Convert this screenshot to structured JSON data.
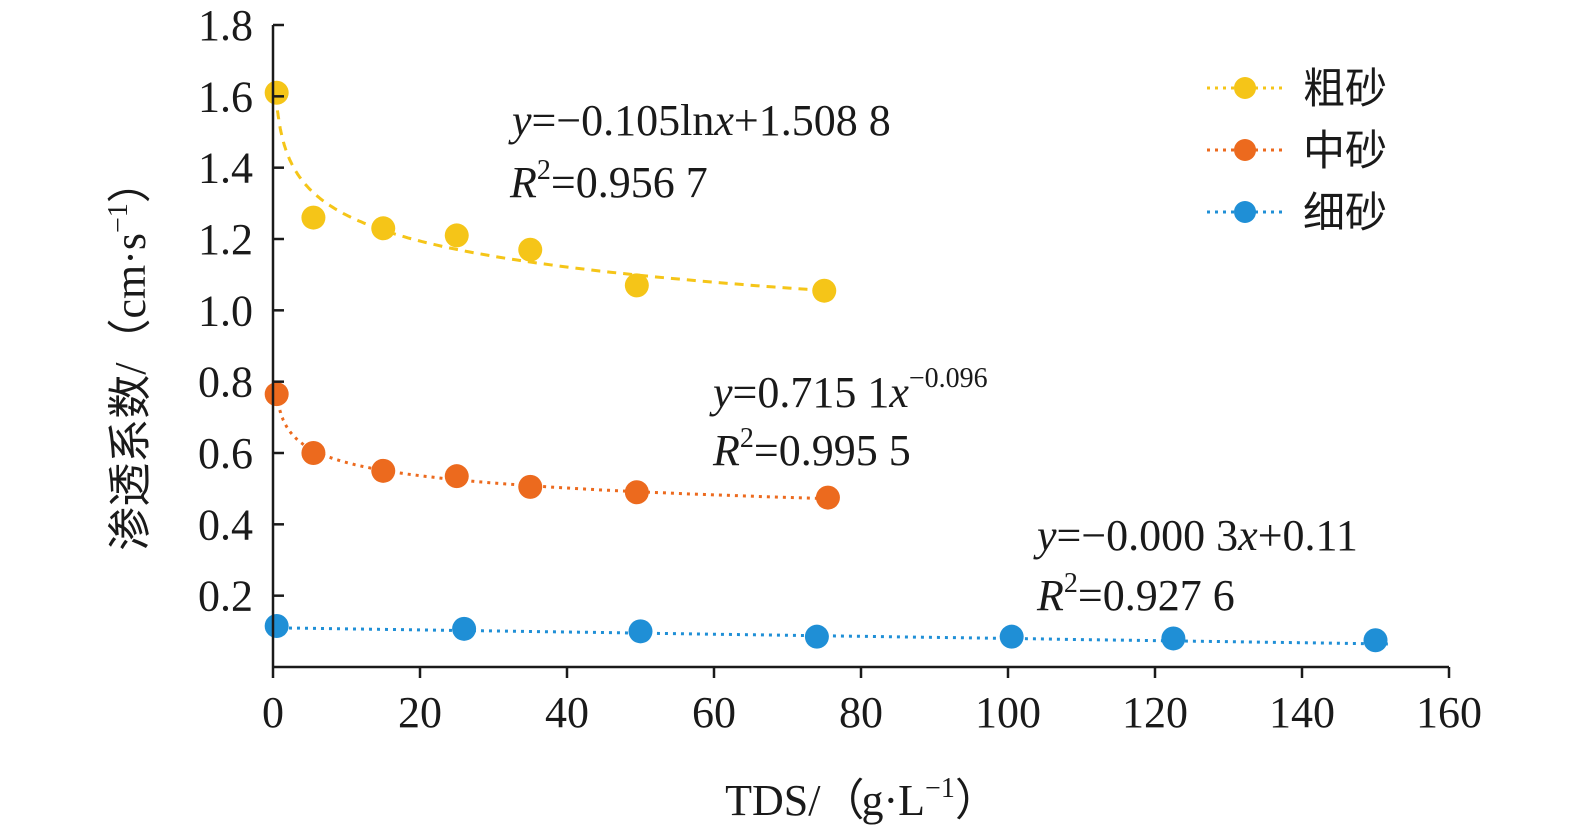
{
  "chart_data": {
    "type": "scatter",
    "xlabel": "TDS/（g·L−1）",
    "ylabel": "渗透系数/（cm·s−1）",
    "xlim": [
      0,
      160
    ],
    "ylim": [
      0,
      1.8
    ],
    "x_ticks": [
      "0",
      "20",
      "40",
      "60",
      "80",
      "100",
      "120",
      "140",
      "160"
    ],
    "y_ticks": [
      "0.2",
      "0.4",
      "0.6",
      "0.8",
      "1.0",
      "1.2",
      "1.4",
      "1.6",
      "1.8"
    ],
    "legend_position": "top-right",
    "series": [
      {
        "name": "粗砂",
        "color": "#f5c518",
        "x": [
          0.5,
          5.5,
          15,
          25,
          35,
          49.5,
          75
        ],
        "y": [
          1.61,
          1.26,
          1.23,
          1.21,
          1.17,
          1.07,
          1.055
        ],
        "fit": "log",
        "fit_coeffs": [
          -0.105,
          1.5088
        ],
        "fit_range": [
          0.4,
          75
        ],
        "equation": "y=−0.105lnx+1.508 8",
        "r2": "R2=0.956 7"
      },
      {
        "name": "中砂",
        "color": "#ec6a1e",
        "x": [
          0.5,
          5.5,
          15,
          25,
          35,
          49.5,
          75.5
        ],
        "y": [
          0.765,
          0.6,
          0.55,
          0.535,
          0.505,
          0.49,
          0.475
        ],
        "fit": "power",
        "fit_coeffs": [
          0.7151,
          -0.096
        ],
        "fit_range": [
          0.5,
          75.5
        ],
        "equation": "y=0.715 1x−0.096",
        "r2": "R2=0.995 5"
      },
      {
        "name": "细砂",
        "color": "#1f8fd6",
        "x": [
          0.5,
          26,
          50,
          74,
          100.5,
          122.5,
          150
        ],
        "y": [
          0.115,
          0.107,
          0.1,
          0.085,
          0.085,
          0.08,
          0.075
        ],
        "fit": "linear",
        "fit_coeffs": [
          -0.0003,
          0.11
        ],
        "fit_range": [
          0,
          152
        ],
        "equation": "y=−0.000 3x+0.11",
        "r2": "R2=0.927 6"
      }
    ]
  }
}
